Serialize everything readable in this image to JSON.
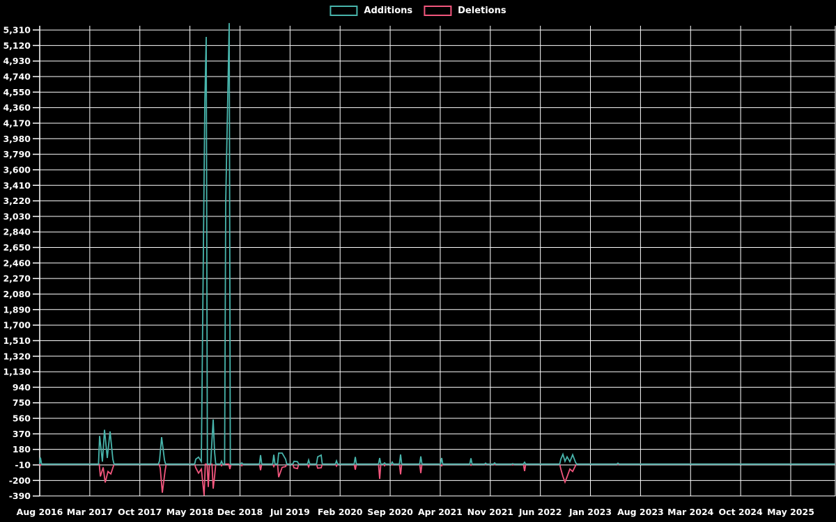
{
  "chart_data": {
    "type": "line",
    "title": "",
    "legend_position": "top-center",
    "background_color": "#000000",
    "grid_color": "#ffffff",
    "text_color": "#ffffff",
    "x_tick_labels": [
      "Aug 2016",
      "Mar 2017",
      "Oct 2017",
      "May 2018",
      "Dec 2018",
      "Jul 2019",
      "Feb 2020",
      "Sep 2020",
      "Apr 2021",
      "Nov 2021",
      "Jun 2022",
      "Jan 2023",
      "Aug 2023",
      "Mar 2024",
      "Oct 2024",
      "May 2025"
    ],
    "months_per_x_tick": 7,
    "x_range_months": [
      0,
      111.2
    ],
    "ylim": [
      -390,
      5310
    ],
    "y_ticks": [
      -390,
      -200,
      -10,
      180,
      370,
      560,
      750,
      940,
      1130,
      1320,
      1510,
      1700,
      1890,
      2080,
      2270,
      2460,
      2650,
      2840,
      3030,
      3220,
      3410,
      3600,
      3790,
      3980,
      4170,
      4360,
      4550,
      4740,
      4930,
      5120,
      5310
    ],
    "baseline": 0,
    "grid": true,
    "series": [
      {
        "name": "Additions",
        "color": "#48b5ac",
        "points": [
          [
            0.1,
            80
          ],
          [
            8.38,
            345
          ],
          [
            8.77,
            30
          ],
          [
            9.06,
            420
          ],
          [
            9.45,
            75
          ],
          [
            9.84,
            400
          ],
          [
            10.23,
            60
          ],
          [
            16.75,
            40
          ],
          [
            17.05,
            330
          ],
          [
            17.44,
            50
          ],
          [
            21.82,
            60
          ],
          [
            22.21,
            85
          ],
          [
            22.6,
            30
          ],
          [
            23.08,
            4416
          ],
          [
            23.28,
            5225
          ],
          [
            24.06,
            250
          ],
          [
            24.25,
            546
          ],
          [
            24.45,
            150
          ],
          [
            25.42,
            35
          ],
          [
            26.01,
            3207
          ],
          [
            26.49,
            5395
          ],
          [
            28.25,
            15
          ],
          [
            30.88,
            110
          ],
          [
            32.73,
            115
          ],
          [
            33.41,
            135
          ],
          [
            33.9,
            135
          ],
          [
            34.38,
            60
          ],
          [
            35.55,
            35
          ],
          [
            36.04,
            30
          ],
          [
            37.6,
            50
          ],
          [
            38.86,
            90
          ],
          [
            39.35,
            110
          ],
          [
            41.49,
            40
          ],
          [
            44.12,
            88
          ],
          [
            47.53,
            75
          ],
          [
            48.21,
            15
          ],
          [
            49.29,
            25
          ],
          [
            50.45,
            118
          ],
          [
            53.28,
            95
          ],
          [
            56.2,
            75
          ],
          [
            60.29,
            72
          ],
          [
            62.34,
            12
          ],
          [
            63.6,
            15
          ],
          [
            66.14,
            5
          ],
          [
            67.79,
            22
          ],
          [
            72.86,
            60
          ],
          [
            73.15,
            120
          ],
          [
            73.44,
            35
          ],
          [
            73.73,
            90
          ],
          [
            74.12,
            30
          ],
          [
            74.51,
            115
          ],
          [
            74.9,
            25
          ],
          [
            80.84,
            12
          ]
        ]
      },
      {
        "name": "Deletions",
        "color": "#f2567d",
        "points": [
          [
            0.1,
            -15
          ],
          [
            8.48,
            -150
          ],
          [
            8.87,
            -40
          ],
          [
            9.16,
            -225
          ],
          [
            9.55,
            -90
          ],
          [
            9.94,
            -120
          ],
          [
            10.25,
            -40
          ],
          [
            16.85,
            -50
          ],
          [
            17.14,
            -350
          ],
          [
            17.53,
            -80
          ],
          [
            21.82,
            -45
          ],
          [
            22.21,
            -110
          ],
          [
            22.6,
            -60
          ],
          [
            22.99,
            -385
          ],
          [
            23.57,
            -280
          ],
          [
            24.25,
            -300
          ],
          [
            24.45,
            -150
          ],
          [
            25.42,
            -20
          ],
          [
            26.59,
            -60
          ],
          [
            28.25,
            -20
          ],
          [
            30.88,
            -75
          ],
          [
            32.73,
            -30
          ],
          [
            33.41,
            -160
          ],
          [
            33.9,
            -40
          ],
          [
            34.38,
            -30
          ],
          [
            35.55,
            -45
          ],
          [
            36.04,
            -55
          ],
          [
            37.6,
            -35
          ],
          [
            38.86,
            -50
          ],
          [
            39.35,
            -45
          ],
          [
            41.49,
            -25
          ],
          [
            44.12,
            -68
          ],
          [
            47.53,
            -180
          ],
          [
            48.21,
            -20
          ],
          [
            49.29,
            -10
          ],
          [
            50.45,
            -125
          ],
          [
            53.28,
            -110
          ],
          [
            56.2,
            -20
          ],
          [
            60.29,
            -15
          ],
          [
            62.34,
            -5
          ],
          [
            63.6,
            -8
          ],
          [
            66.14,
            -12
          ],
          [
            67.79,
            -85
          ],
          [
            72.86,
            -60
          ],
          [
            73.15,
            -150
          ],
          [
            73.44,
            -220
          ],
          [
            73.73,
            -155
          ],
          [
            74.12,
            -60
          ],
          [
            74.51,
            -90
          ],
          [
            74.9,
            -20
          ],
          [
            80.84,
            -5
          ]
        ]
      }
    ]
  }
}
